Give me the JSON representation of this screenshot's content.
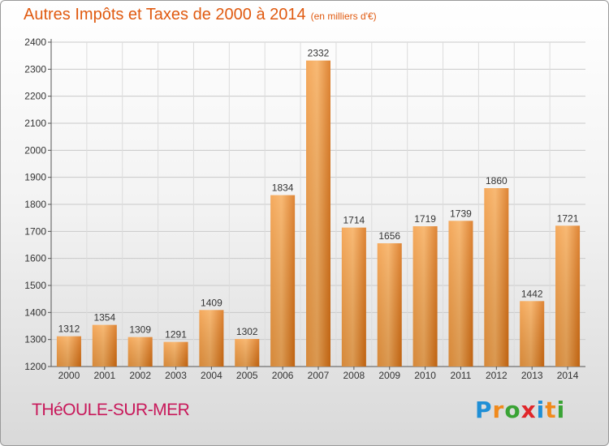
{
  "header": {
    "title": "Autres Impôts et Taxes de 2000 à 2014",
    "subtitle": "(en milliers d'€)"
  },
  "commune": "THéOULE-SUR-MER",
  "logo": {
    "letters": [
      "P",
      "r",
      "o",
      "x",
      "i",
      "t",
      "i"
    ],
    "colors": [
      "#1f8fd6",
      "#f08a1c",
      "#3aa335",
      "#e0262a",
      "#1f8fd6",
      "#f08a1c",
      "#3aa335"
    ]
  },
  "chart_data": {
    "type": "bar",
    "categories": [
      "2000",
      "2001",
      "2002",
      "2003",
      "2004",
      "2005",
      "2006",
      "2007",
      "2008",
      "2009",
      "2010",
      "2011",
      "2012",
      "2013",
      "2014"
    ],
    "values": [
      1312,
      1354,
      1309,
      1291,
      1409,
      1302,
      1834,
      2332,
      1714,
      1656,
      1719,
      1739,
      1860,
      1442,
      1721
    ],
    "ylim": [
      1200,
      2400
    ],
    "yticks": [
      1200,
      1300,
      1400,
      1500,
      1600,
      1700,
      1800,
      1900,
      2000,
      2100,
      2200,
      2300,
      2400
    ],
    "grid": true,
    "bar_color": "#f08a1c"
  }
}
